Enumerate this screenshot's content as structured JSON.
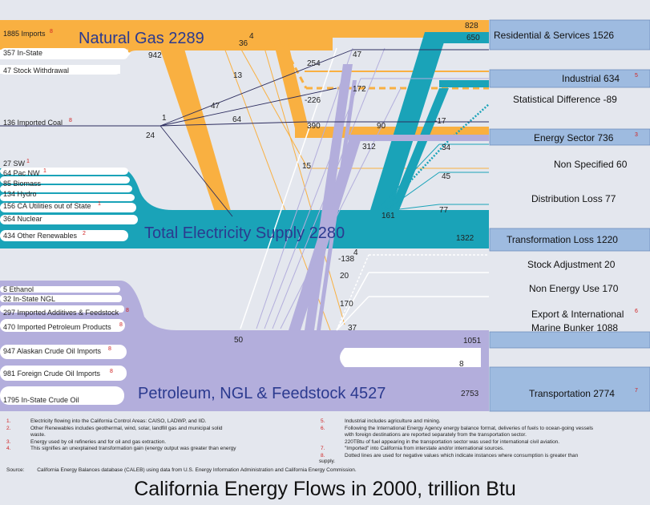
{
  "title": "California Energy Flows in 2000, trillion Btu",
  "colors": {
    "gas": "#f9b041",
    "elec": "#1aa3b8",
    "petro": "#b3aedc",
    "sink": "#9ebbe0",
    "coal": "#2c2c5e"
  },
  "hubs": {
    "gas": "Natural Gas 2289",
    "elec": "Total Electricity Supply 2280",
    "petro": "Petroleum, NGL & Feedstock 4527"
  },
  "sources": [
    {
      "text": "1885 Imports",
      "note": "8"
    },
    {
      "text": "357 In-State",
      "note": ""
    },
    {
      "text": "47 Stock Withdrawal",
      "note": ""
    },
    {
      "text": "136 Imported Coal",
      "note": "8"
    },
    {
      "text": "27 SW",
      "note": "1"
    },
    {
      "text": "64 Pac NW",
      "note": "1"
    },
    {
      "text": "85 Biomass",
      "note": ""
    },
    {
      "text": "134 Hydro",
      "note": ""
    },
    {
      "text": "156 CA Utilities out of State",
      "note": "1"
    },
    {
      "text": "364 Nuclear",
      "note": ""
    },
    {
      "text": "434 Other Renewables",
      "note": "2"
    },
    {
      "text": "5 Ethanol",
      "note": ""
    },
    {
      "text": "32 In-State NGL",
      "note": ""
    },
    {
      "text": "297 Imported Additives & Feedstock",
      "note": "8"
    },
    {
      "text": "470 Imported Petroleum Products",
      "note": "8"
    },
    {
      "text": "947 Alaskan Crude Oil Imports",
      "note": "8"
    },
    {
      "text": "981 Foreign Crude Oil Imports",
      "note": "8"
    },
    {
      "text": "1795 In-State Crude Oil",
      "note": ""
    }
  ],
  "sinks": [
    {
      "text": "Residential & Services  1526",
      "note": "",
      "boxed": true
    },
    {
      "text": "Industrial  634",
      "note": "5",
      "boxed": true
    },
    {
      "text": "Statistical Difference  -89",
      "note": "",
      "boxed": false
    },
    {
      "text": "Energy Sector  736",
      "note": "3",
      "boxed": true
    },
    {
      "text": "Non Specified 60",
      "note": "",
      "boxed": false
    },
    {
      "text": "Distribution Loss  77",
      "note": "",
      "boxed": false
    },
    {
      "text": "Transformation Loss  1220",
      "note": "",
      "boxed": true
    },
    {
      "text": "Stock Adjustment  20",
      "note": "",
      "boxed": false
    },
    {
      "text": "Non Energy Use  170",
      "note": "",
      "boxed": false
    },
    {
      "text": "Export & International",
      "note": "6",
      "boxed": false
    },
    {
      "text": "Marine Bunker  1088",
      "note": "",
      "boxed": false
    },
    {
      "text": "Transportation  2774",
      "note": "7",
      "boxed": true
    }
  ],
  "flow_labels": [
    "942",
    "36",
    "4",
    "13",
    "47",
    "1",
    "24",
    "64",
    "254",
    "47",
    "-226",
    "390",
    "90",
    "172",
    "-17",
    "312",
    "34",
    "15",
    "45",
    "161",
    "77",
    "1322",
    "-138",
    "4",
    "20",
    "170",
    "50",
    "37",
    "1051",
    "8",
    "2753",
    "828",
    "650"
  ],
  "footnotes_left": [
    {
      "k": "1.",
      "t": "Electricity flowing into the California Control Areas: CAISO, LADWP, and IID."
    },
    {
      "k": "2.",
      "t": "Other Renewables includes geothermal, wind, solar, landfill gas and municipal solid"
    },
    {
      "k": "",
      "t": "waste."
    },
    {
      "k": "3.",
      "t": "Energy used by oil refineries and for oil and gas extraction."
    },
    {
      "k": "4.",
      "t": "This signifies an unexplained transformation gain (energy output was greater than energy"
    }
  ],
  "footnotes_right": [
    {
      "k": "5.",
      "t": "Industrial includes agriculture and mining."
    },
    {
      "k": "6.",
      "t": "Following the International Energy Agency energy balance format, deliveries of fuels to ocean-going vessels"
    },
    {
      "k": "",
      "t": "with foreign destinations are reported separately from the transportation    sector."
    },
    {
      "k": "",
      "t": "220TBtu of fuel appearing in the transportation sector was used for international civil aviation."
    },
    {
      "k": "7.",
      "t": "\"Imported\" into California from interstate and/or international sources."
    },
    {
      "k": "8.",
      "t": "Dotted lines are used for negative values which indicate instances where consumption is greater than"
    }
  ],
  "supply": "supply.",
  "source_label": "Source:",
  "source_text": "California Energy Balances database (CALEB) using data from U.S. Energy Information Administration and California Energy Commission."
}
